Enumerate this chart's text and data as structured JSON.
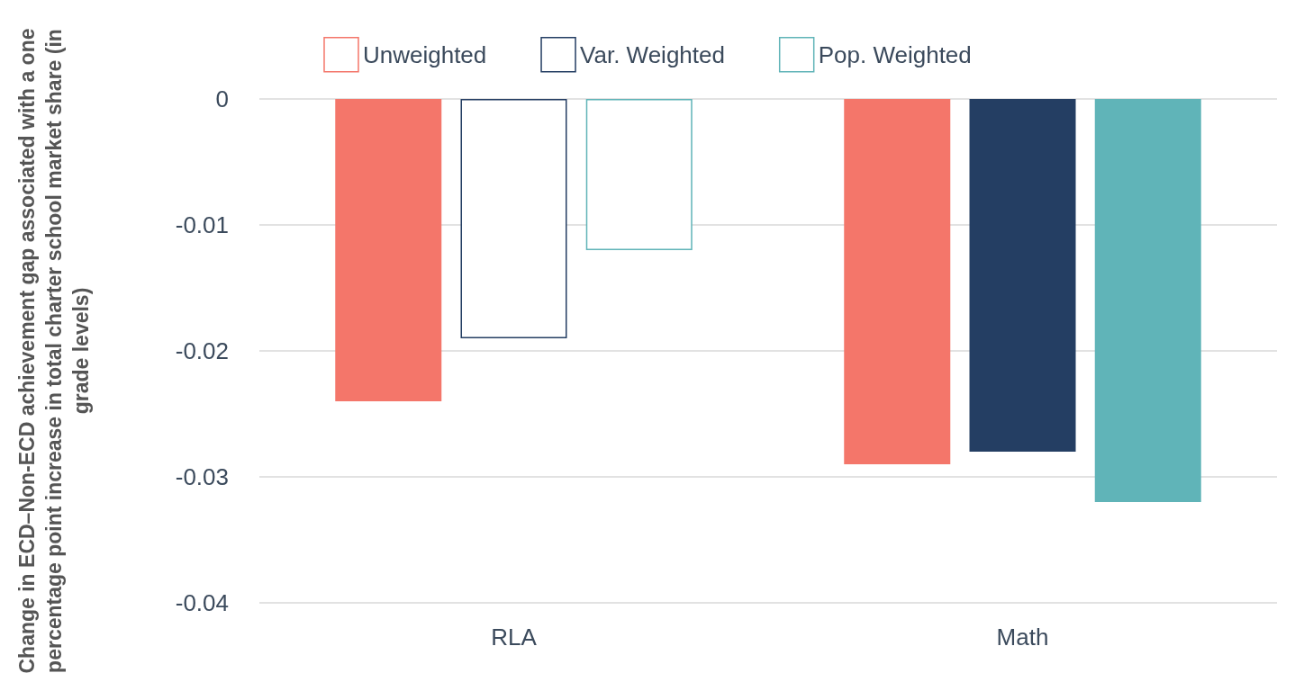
{
  "chart_data": {
    "type": "bar",
    "ylabel": "Change in ECD–Non-ECD achievement gap associated with a one percentage point increase in total charter school market share (in grade levels)",
    "categories": [
      "RLA",
      "Math"
    ],
    "series": [
      {
        "name": "Unweighted",
        "color": "#f4766a",
        "values": [
          -0.024,
          -0.029
        ]
      },
      {
        "name": "Var. Weighted",
        "color": "#243e63",
        "colors": [
          "#ffffff",
          "#243e63"
        ],
        "values": [
          -0.019,
          -0.028
        ]
      },
      {
        "name": "Pop. Weighted",
        "color": "#60b4b8",
        "colors": [
          "#ffffff",
          "#60b4b8"
        ],
        "values": [
          -0.012,
          -0.032
        ]
      }
    ],
    "ylim": [
      -0.04,
      0
    ],
    "yticks": [
      0,
      -0.01,
      -0.02,
      -0.03,
      -0.04
    ],
    "grid": "y",
    "legend": "top"
  }
}
